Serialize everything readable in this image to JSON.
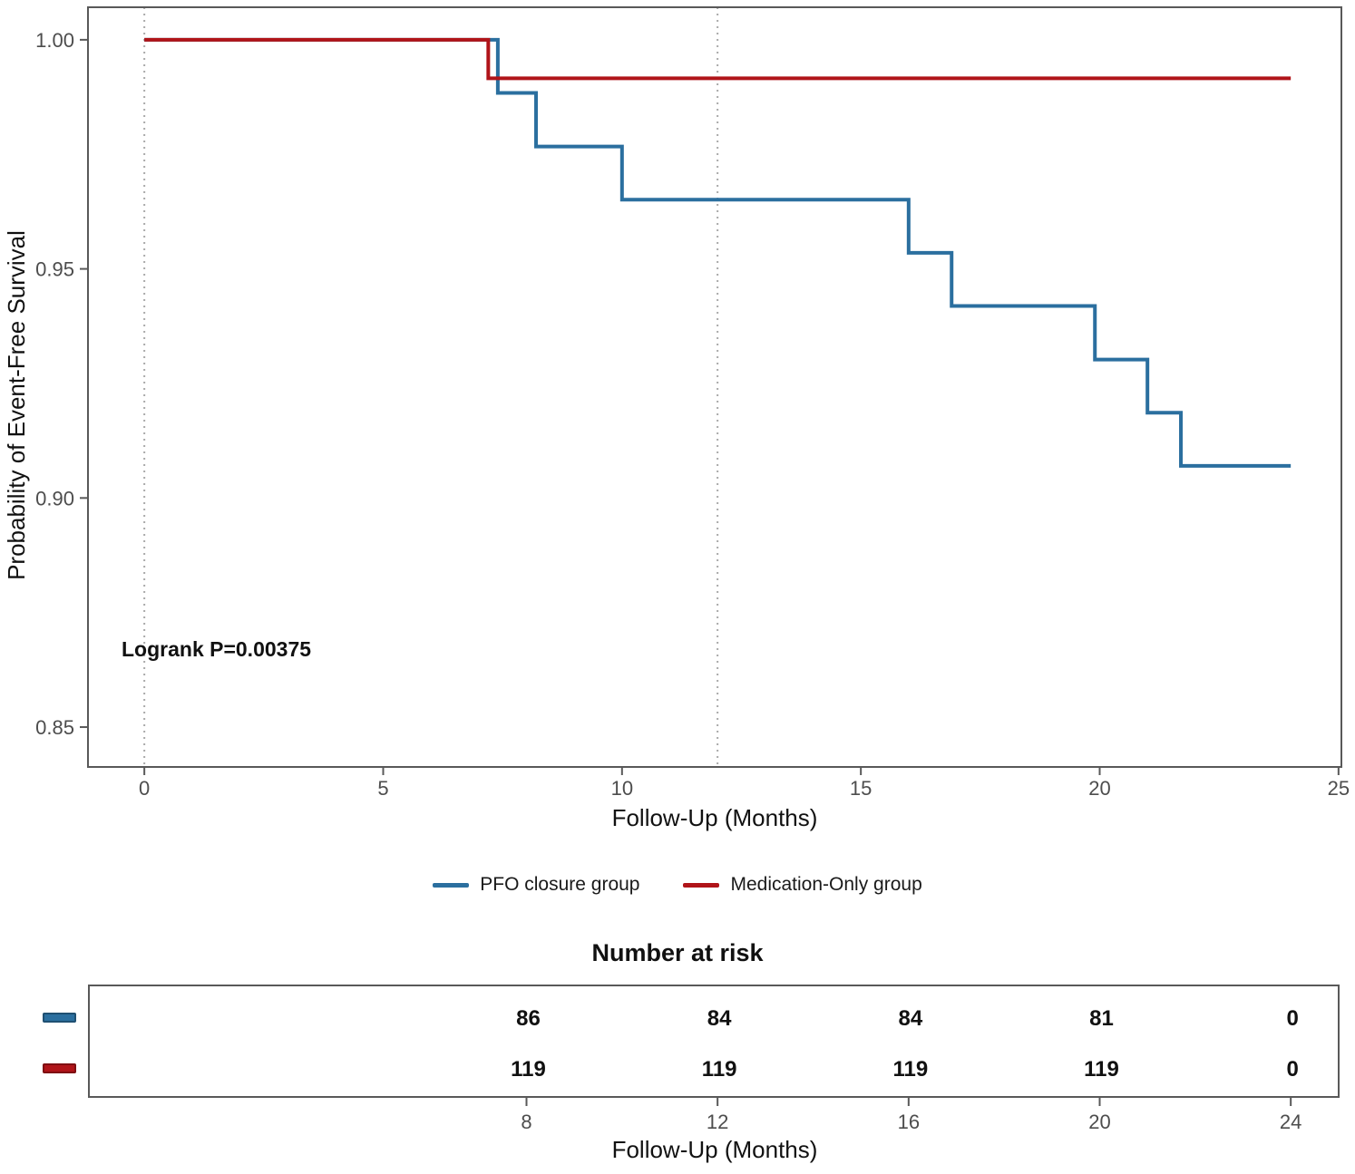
{
  "figure": {
    "y_axis_title": "Probability of Event-Free Survival",
    "x_axis_title": "Follow-Up (Months)",
    "annotation": "Logrank P=0.00375",
    "legend": [
      {
        "label": "PFO closure group",
        "color": "#2b6f9f"
      },
      {
        "label": "Medication-Only group",
        "color": "#b01419"
      }
    ],
    "risk_section": {
      "title": "Number at risk",
      "x_axis_title": "Follow-Up (Months)",
      "months": [
        8,
        12,
        16,
        20,
        24
      ],
      "rows": [
        {
          "group": "PFO closure group",
          "color": "#2b6f9f",
          "counts": [
            "86",
            "84",
            "84",
            "81",
            "0"
          ]
        },
        {
          "group": "Medication-Only group",
          "color": "#b01419",
          "counts": [
            "119",
            "119",
            "119",
            "119",
            "0"
          ]
        }
      ]
    }
  },
  "chart_data": {
    "type": "line",
    "subtype": "kaplan-meier-step",
    "title": "",
    "xlabel": "Follow-Up (Months)",
    "ylabel": "Probability of Event-Free Survival",
    "xlim": [
      -1.18,
      25.06
    ],
    "ylim": [
      0.8413,
      1.0071
    ],
    "x_ticks": [
      0,
      5,
      10,
      15,
      20,
      25
    ],
    "x_tick_labels": [
      "0",
      "5",
      "10",
      "15",
      "20",
      "25"
    ],
    "y_ticks": [
      1.0,
      0.95,
      0.9,
      0.85
    ],
    "y_tick_labels": [
      "1.00",
      "0.95",
      "0.90",
      "0.85"
    ],
    "reference_vlines_months": [
      0,
      12
    ],
    "grid": false,
    "legend_position": "bottom",
    "annotation": "Logrank P=0.00375",
    "series": [
      {
        "name": "PFO closure group",
        "color": "#2b6f9f",
        "steps": [
          [
            0,
            1.0
          ],
          [
            7.4,
            0.9884
          ],
          [
            8.2,
            0.9767
          ],
          [
            10,
            0.9651
          ],
          [
            16,
            0.9535
          ],
          [
            16.9,
            0.9419
          ],
          [
            19.9,
            0.9302
          ],
          [
            21,
            0.9186
          ],
          [
            21.7,
            0.907
          ]
        ],
        "end_month": 24
      },
      {
        "name": "Medication-Only group",
        "color": "#b01419",
        "steps": [
          [
            0,
            1.0
          ],
          [
            7.2,
            0.9916
          ]
        ],
        "end_month": 24
      }
    ],
    "risk_table": {
      "title": "Number at risk",
      "months": [
        8,
        12,
        16,
        20,
        24
      ],
      "rows": [
        {
          "name": "PFO closure group",
          "counts": [
            86,
            84,
            84,
            81,
            0
          ]
        },
        {
          "name": "Medication-Only group",
          "counts": [
            119,
            119,
            119,
            119,
            0
          ]
        }
      ]
    }
  },
  "style": {
    "tick_label_color": "#4d4d4d",
    "axis_color": "#595959",
    "dotted_line_color": "#a9a9a9",
    "text_color": "#111111"
  }
}
